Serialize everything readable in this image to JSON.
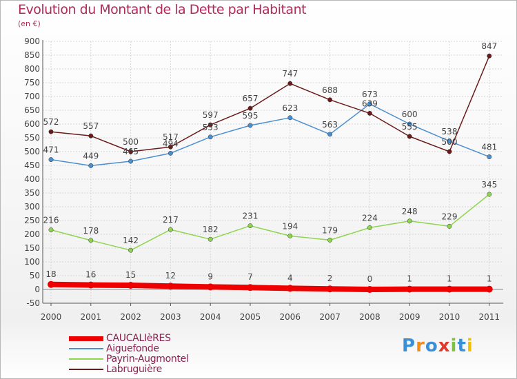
{
  "title": "Evolution du Montant de la Dette par Habitant",
  "subtitle": "(en €)",
  "logo": {
    "text": "Proxiti",
    "colors": [
      "#3a8fd6",
      "#f28c1e",
      "#3a8fd6",
      "#e2382a",
      "#7fc242",
      "#3a8fd6",
      "#f2c200"
    ]
  },
  "chart_data": {
    "type": "line",
    "x": [
      "2000",
      "2001",
      "2002",
      "2003",
      "2004",
      "2005",
      "2006",
      "2007",
      "2008",
      "2009",
      "2010",
      "2011"
    ],
    "ylim": [
      -50,
      900
    ],
    "yticks": [
      -50,
      0,
      50,
      100,
      150,
      200,
      250,
      300,
      350,
      400,
      450,
      500,
      550,
      600,
      650,
      700,
      750,
      800,
      850,
      900
    ],
    "grid": true,
    "legend": "bottom-left",
    "series": [
      {
        "name": "CAUCALIèRES",
        "color": "#ee0000",
        "values": [
          18,
          16,
          15,
          12,
          9,
          7,
          4,
          2,
          0,
          1,
          1,
          1
        ]
      },
      {
        "name": "Aiguefonde",
        "color": "#4b8fce",
        "values": [
          471,
          449,
          465,
          494,
          553,
          595,
          623,
          563,
          673,
          600,
          538,
          481
        ]
      },
      {
        "name": "Payrin-Augmontel",
        "color": "#8fd44e",
        "values": [
          216,
          178,
          142,
          217,
          182,
          231,
          194,
          179,
          224,
          248,
          229,
          345
        ]
      },
      {
        "name": "Labruguière",
        "color": "#6b1a1a",
        "values": [
          572,
          557,
          500,
          517,
          597,
          657,
          747,
          688,
          639,
          555,
          500,
          847
        ]
      }
    ],
    "data_labels": [
      {
        "series": 0,
        "values": [
          "18",
          "16",
          "15",
          "12",
          "9",
          "7",
          "4",
          "2",
          "0",
          "1",
          "1",
          "1"
        ]
      },
      {
        "series": 1,
        "values": [
          "471",
          "449",
          "465",
          "494",
          "553",
          "595",
          "623",
          "563",
          "673",
          "600",
          "538",
          "481"
        ]
      },
      {
        "series": 2,
        "values": [
          "216",
          "178",
          "142",
          "217",
          "182",
          "231",
          "194",
          "179",
          "224",
          "248",
          "229",
          "345"
        ]
      },
      {
        "series": 3,
        "values": [
          "572",
          "557",
          "500",
          "517",
          "597",
          "657",
          "747",
          "688",
          "639",
          "555",
          "500",
          "847"
        ]
      }
    ]
  }
}
